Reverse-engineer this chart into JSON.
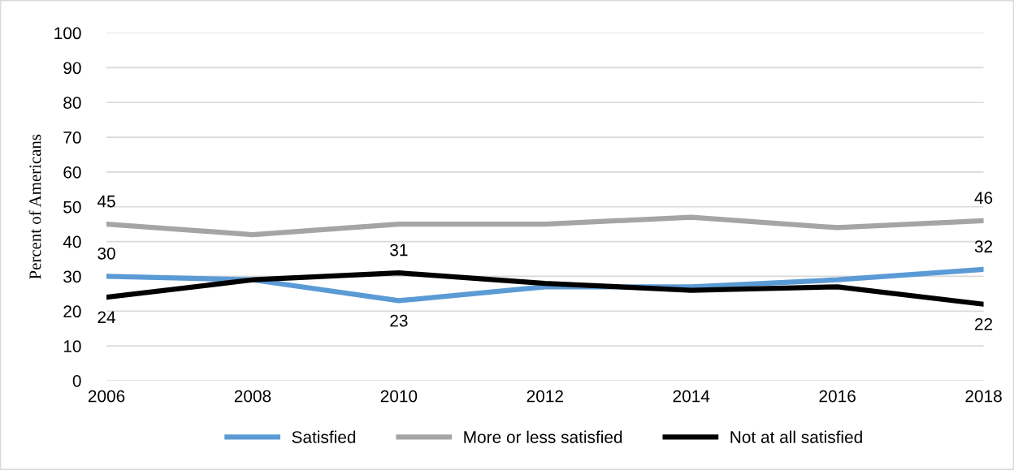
{
  "chart_data": {
    "type": "line",
    "ylabel": "Percent of Americans",
    "categories": [
      "2006",
      "2008",
      "2010",
      "2012",
      "2014",
      "2016",
      "2018"
    ],
    "series": [
      {
        "name": "Satisfied",
        "color": "#5b9bd5",
        "values": [
          30,
          29,
          23,
          27,
          27,
          29,
          32
        ],
        "value_labels": [
          "30",
          null,
          "23",
          null,
          null,
          null,
          "32"
        ]
      },
      {
        "name": "More or less satisfied",
        "color": "#a5a5a5",
        "values": [
          45,
          42,
          45,
          45,
          47,
          44,
          46
        ],
        "value_labels": [
          "45",
          null,
          null,
          null,
          null,
          null,
          "46"
        ]
      },
      {
        "name": "Not at all satisfied",
        "color": "#000000",
        "values": [
          24,
          29,
          31,
          28,
          26,
          27,
          22
        ],
        "value_labels": [
          "24",
          null,
          "31",
          null,
          null,
          null,
          "22"
        ]
      }
    ],
    "ylim": [
      0,
      100
    ],
    "yticks": [
      0,
      10,
      20,
      30,
      40,
      50,
      60,
      70,
      80,
      90,
      100
    ],
    "grid": "y",
    "legend": "bottom",
    "marker": "none",
    "line_style": "solid"
  }
}
